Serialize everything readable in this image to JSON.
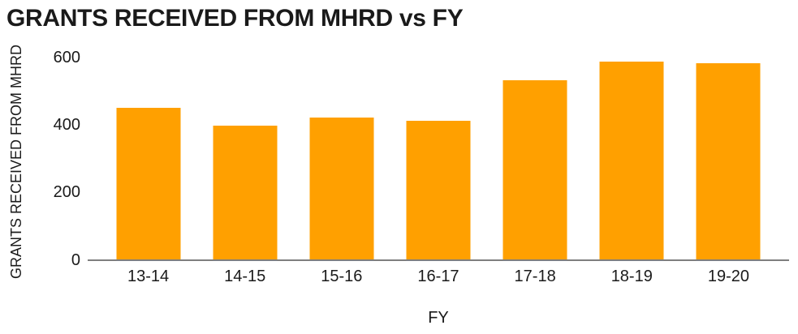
{
  "chart_data": {
    "type": "bar",
    "title": "GRANTS RECEIVED FROM MHRD vs FY",
    "xlabel": "FY",
    "ylabel": "GRANTS RECEIVED FROM MHRD",
    "categories": [
      "13-14",
      "14-15",
      "15-16",
      "16-17",
      "17-18",
      "18-19",
      "19-20"
    ],
    "values": [
      450,
      395,
      420,
      410,
      530,
      585,
      580
    ],
    "ylim": [
      0,
      600
    ],
    "yticks": [
      0,
      200,
      400,
      600
    ],
    "grid": false,
    "legend": false,
    "layout": {
      "legend_position": "none",
      "bar_orientation": "vertical"
    },
    "colors": {
      "bar": "#FFA000",
      "axis_line": "#7F7F7F",
      "text": "#1A1A1A",
      "background": "#FFFFFF"
    }
  }
}
